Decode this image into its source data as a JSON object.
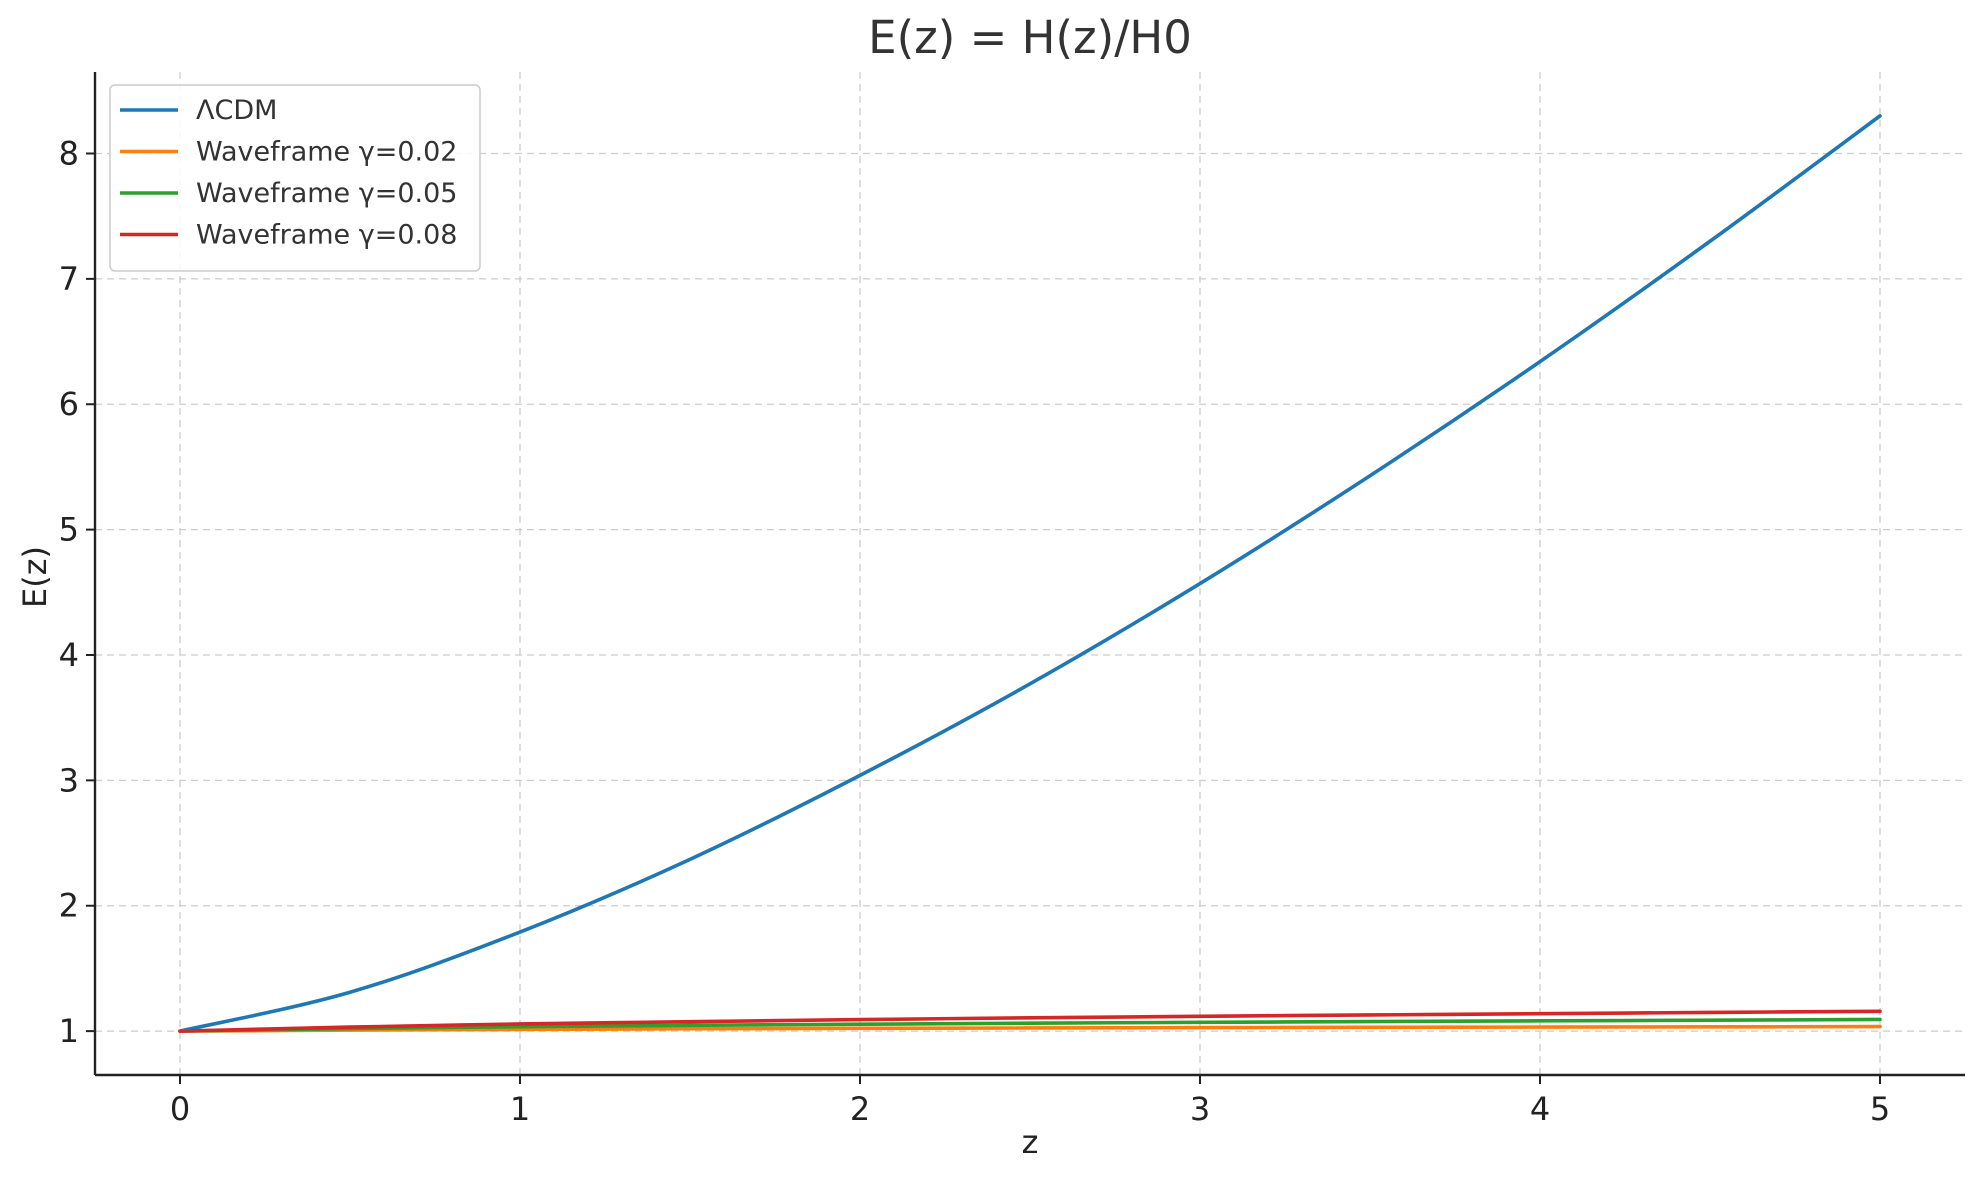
{
  "chart_data": {
    "type": "line",
    "title": "E(z) = H(z)/H0",
    "xlabel": "z",
    "ylabel": "E(z)",
    "xlim": [
      -0.25,
      5.25
    ],
    "ylim": [
      0.65,
      8.65
    ],
    "xticks": [
      0,
      1,
      2,
      3,
      4,
      5
    ],
    "yticks": [
      1,
      2,
      3,
      4,
      5,
      6,
      7,
      8
    ],
    "grid": true,
    "legend_position": "top-left",
    "series": [
      {
        "name": "ΛCDM",
        "color": "#1f77b4",
        "x": [
          0,
          0.5,
          1,
          1.5,
          2,
          2.5,
          3,
          3.5,
          4,
          4.5,
          5
        ],
        "y": [
          1.0,
          1.31,
          1.79,
          2.37,
          3.04,
          3.77,
          4.57,
          5.43,
          6.34,
          7.3,
          8.3
        ]
      },
      {
        "name": "Waveframe γ=0.02",
        "color": "#ff7f0e",
        "x": [
          0,
          0.5,
          1,
          1.5,
          2,
          2.5,
          3,
          3.5,
          4,
          4.5,
          5
        ],
        "y": [
          1.0,
          1.008,
          1.014,
          1.019,
          1.022,
          1.025,
          1.028,
          1.03,
          1.032,
          1.034,
          1.036
        ]
      },
      {
        "name": "Waveframe γ=0.05",
        "color": "#2ca02c",
        "x": [
          0,
          0.5,
          1,
          1.5,
          2,
          2.5,
          3,
          3.5,
          4,
          4.5,
          5
        ],
        "y": [
          1.0,
          1.02,
          1.035,
          1.046,
          1.055,
          1.063,
          1.07,
          1.076,
          1.082,
          1.087,
          1.093
        ]
      },
      {
        "name": "Waveframe γ=0.08",
        "color": "#d62728",
        "x": [
          0,
          0.5,
          1,
          1.5,
          2,
          2.5,
          3,
          3.5,
          4,
          4.5,
          5
        ],
        "y": [
          1.0,
          1.032,
          1.057,
          1.075,
          1.092,
          1.106,
          1.118,
          1.129,
          1.139,
          1.149,
          1.158
        ]
      }
    ]
  }
}
